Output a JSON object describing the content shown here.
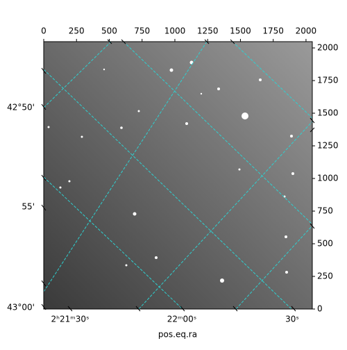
{
  "chart_data": {
    "type": "image",
    "xlim": [
      0,
      2048
    ],
    "ylim": [
      0,
      2048
    ],
    "xticks": [
      0,
      250,
      500,
      750,
      1000,
      1250,
      1500,
      1750,
      2000
    ],
    "yticks": [
      0,
      250,
      500,
      750,
      1000,
      1250,
      1500,
      1750,
      2000
    ],
    "dec_tick_labels": [
      "42°50'",
      "55'",
      "43°00'"
    ],
    "ra_tick_labels": [
      "2ʰ21ᵐ30ˢ",
      "22ᵐ00ˢ",
      "30ˢ"
    ],
    "x_label": "pos.eq.ra"
  }
}
